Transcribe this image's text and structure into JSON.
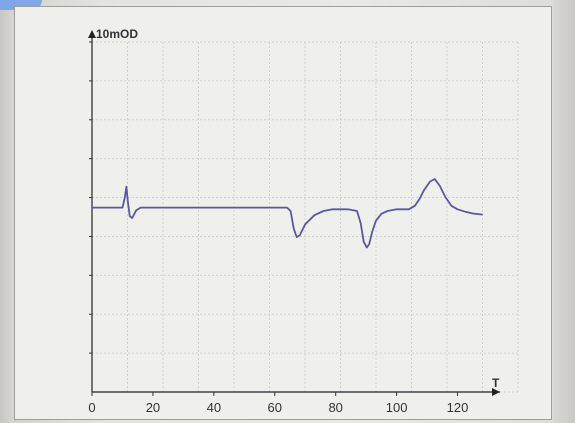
{
  "chart_data": {
    "type": "line",
    "ylabel": "10mOD",
    "xlabel": "T",
    "x_ticks": [
      0,
      20,
      40,
      60,
      80,
      100,
      120
    ],
    "xlim": [
      0,
      130
    ],
    "ylim": [
      0,
      10
    ],
    "grid": true,
    "series": [
      {
        "color": "#5b57a8",
        "x": [
          0,
          10,
          10.8,
          11.3,
          11.8,
          12.4,
          13.2,
          14.5,
          16,
          20,
          40,
          60,
          64,
          65.2,
          66.2,
          67.2,
          68.2,
          70,
          73,
          76,
          79,
          84,
          87,
          88.2,
          89.2,
          90.2,
          91,
          92,
          93.2,
          95,
          97,
          100,
          104,
          106,
          107.5,
          109,
          111,
          112.5,
          114.2,
          116,
          118,
          120,
          122.5,
          125,
          128
        ],
        "y": [
          5.3,
          5.3,
          5.6,
          5.9,
          5.45,
          5.05,
          5.0,
          5.22,
          5.3,
          5.3,
          5.3,
          5.3,
          5.3,
          5.2,
          4.7,
          4.45,
          4.5,
          4.82,
          5.08,
          5.2,
          5.25,
          5.25,
          5.2,
          4.85,
          4.32,
          4.15,
          4.25,
          4.6,
          4.92,
          5.12,
          5.2,
          5.25,
          5.25,
          5.35,
          5.55,
          5.8,
          6.05,
          6.12,
          5.92,
          5.6,
          5.35,
          5.25,
          5.18,
          5.13,
          5.1
        ]
      }
    ]
  }
}
